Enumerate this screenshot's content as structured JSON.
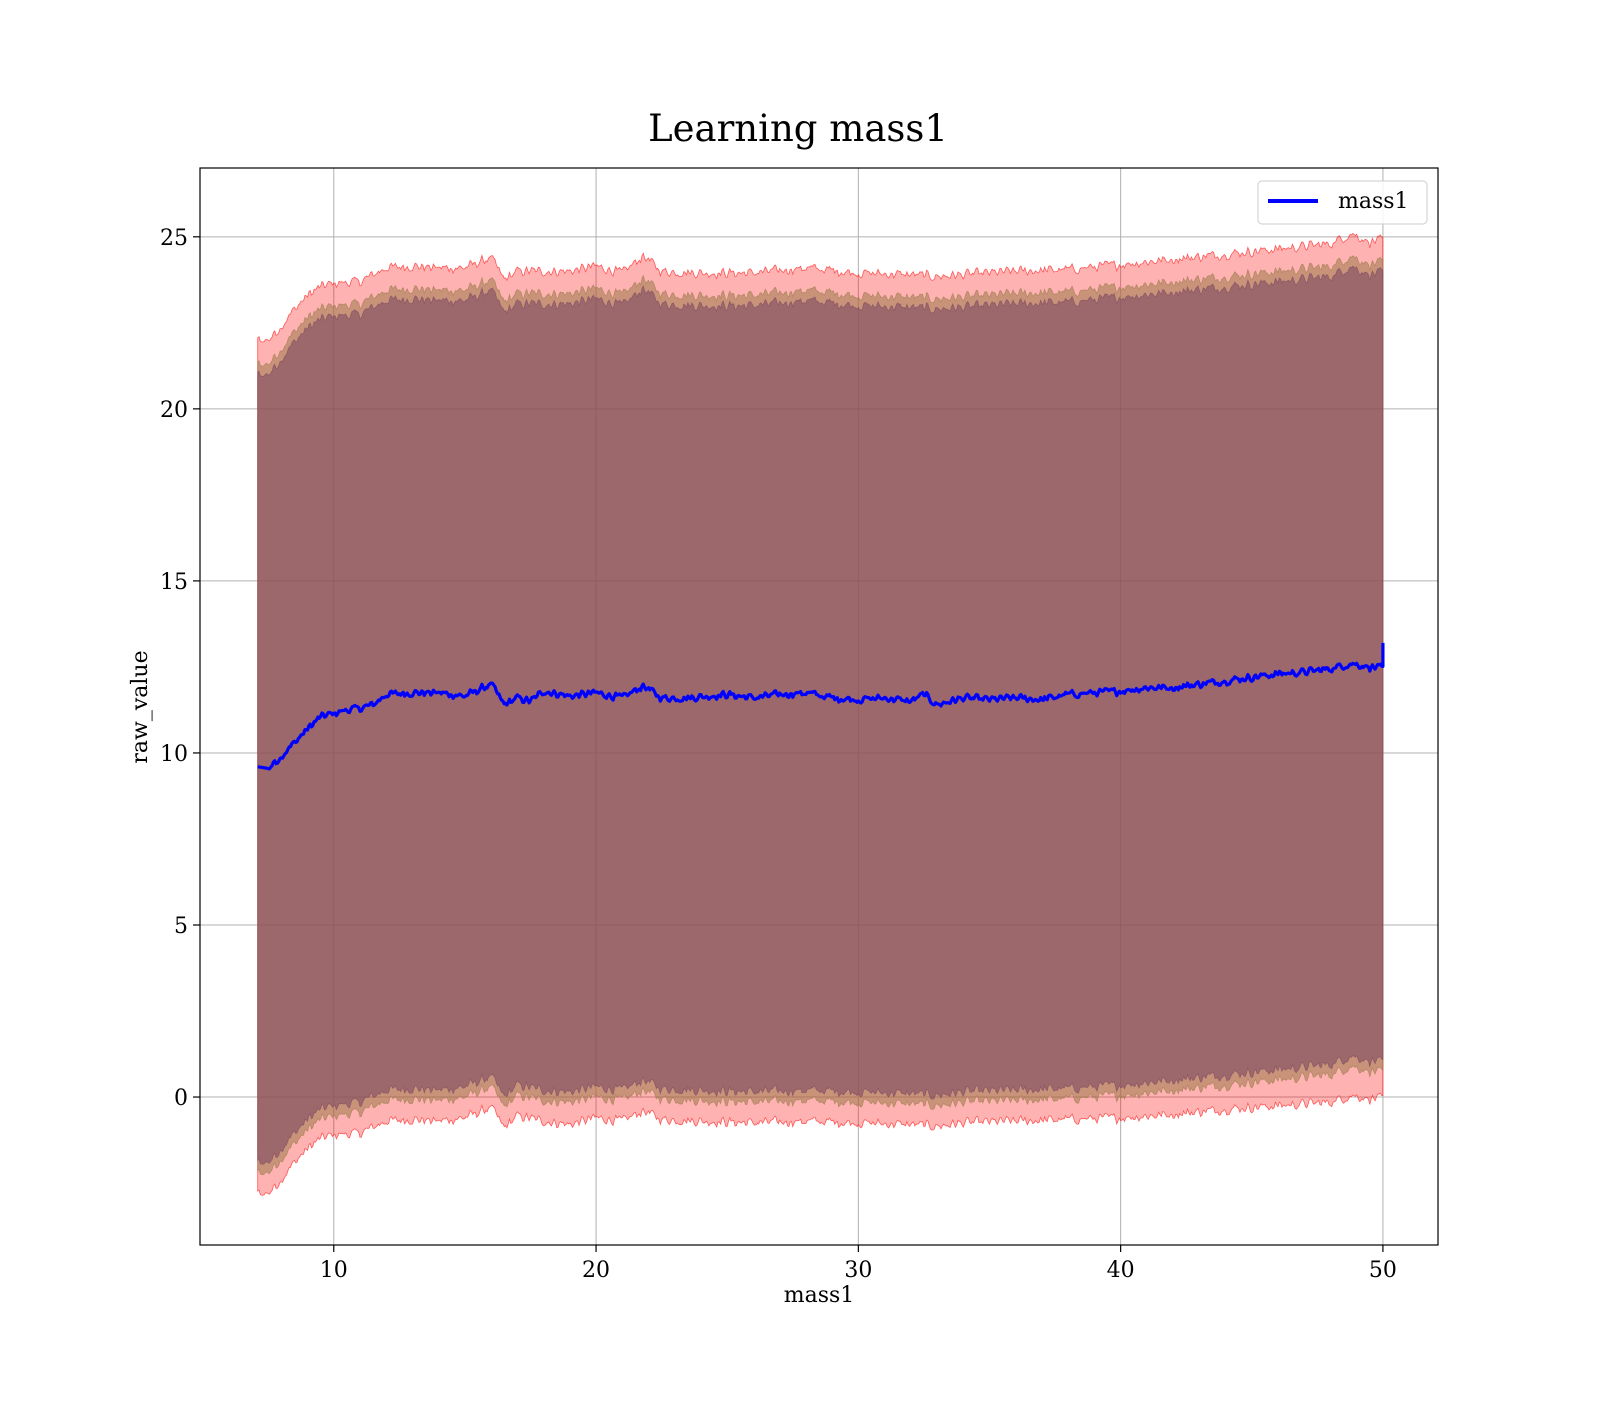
{
  "chart_data": {
    "type": "area",
    "title": "Learning mass1",
    "xlabel": "mass1",
    "ylabel": "raw_value",
    "xlim": [
      4.9,
      52.1
    ],
    "ylim": [
      -4.3,
      27.0
    ],
    "xticks": [
      10,
      20,
      30,
      40,
      50
    ],
    "yticks": [
      0,
      5,
      10,
      15,
      20,
      25
    ],
    "grid": true,
    "legend": {
      "position": "top-right",
      "entries": [
        "mass1"
      ]
    },
    "series": [
      {
        "name": "mass1",
        "style": "line",
        "color": "#0000ff",
        "x": [
          7.1,
          7.5,
          8.0,
          8.5,
          9.0,
          9.5,
          10.0,
          10.5,
          11.0,
          11.5,
          12.0,
          13.0,
          14.0,
          15.0,
          16.0,
          16.5,
          17.0,
          17.5,
          18.0,
          19.0,
          20.0,
          21.0,
          21.8,
          22.5,
          23.5,
          25.0,
          26.0,
          27.0,
          28.0,
          29.0,
          30.0,
          31.0,
          32.0,
          32.5,
          33.0,
          34.0,
          35.0,
          36.0,
          37.0,
          38.0,
          39.0,
          40.0,
          41.0,
          42.0,
          43.0,
          44.0,
          45.0,
          46.0,
          47.0,
          48.0,
          48.8,
          49.5,
          50.0,
          50.0
        ],
        "y": [
          9.6,
          9.55,
          9.9,
          10.3,
          10.7,
          11.05,
          11.15,
          11.25,
          11.3,
          11.4,
          11.7,
          11.75,
          11.75,
          11.65,
          12.0,
          11.4,
          11.6,
          11.5,
          11.8,
          11.65,
          11.75,
          11.6,
          11.95,
          11.6,
          11.6,
          11.7,
          11.6,
          11.7,
          11.75,
          11.6,
          11.55,
          11.6,
          11.5,
          11.7,
          11.4,
          11.6,
          11.55,
          11.6,
          11.55,
          11.7,
          11.75,
          11.8,
          11.9,
          11.9,
          12.0,
          12.1,
          12.2,
          12.3,
          12.35,
          12.45,
          12.6,
          12.5,
          12.45,
          13.2
        ]
      },
      {
        "name": "",
        "style": "band",
        "color": "#ff0000",
        "x": [
          7.1,
          7.5,
          8.0,
          8.5,
          9.0,
          9.5,
          10.0,
          11.0,
          12.0,
          13.0,
          14.0,
          15.0,
          16.0,
          16.5,
          17.0,
          18.0,
          19.0,
          20.0,
          21.0,
          21.8,
          22.5,
          24.0,
          26.0,
          28.0,
          30.0,
          32.0,
          33.0,
          34.0,
          36.0,
          38.0,
          40.0,
          42.0,
          44.0,
          46.0,
          48.0,
          48.8,
          49.5,
          50.0
        ],
        "lower": [
          -2.8,
          -2.8,
          -2.4,
          -1.9,
          -1.5,
          -1.2,
          -1.1,
          -1.05,
          -0.7,
          -0.65,
          -0.7,
          -0.6,
          -0.3,
          -0.9,
          -0.55,
          -0.7,
          -0.8,
          -0.6,
          -0.7,
          -0.4,
          -0.65,
          -0.7,
          -0.75,
          -0.7,
          -0.75,
          -0.8,
          -0.85,
          -0.75,
          -0.7,
          -0.65,
          -0.6,
          -0.5,
          -0.35,
          -0.25,
          -0.15,
          0.05,
          -0.05,
          -0.05
        ],
        "upper": [
          22.0,
          22.0,
          22.4,
          22.9,
          23.3,
          23.55,
          23.65,
          23.7,
          24.1,
          24.15,
          24.1,
          24.1,
          24.4,
          23.75,
          24.0,
          24.0,
          24.0,
          24.15,
          23.95,
          24.45,
          24.0,
          23.95,
          23.95,
          24.1,
          23.95,
          23.9,
          23.85,
          23.9,
          24.0,
          24.05,
          24.2,
          24.35,
          24.5,
          24.65,
          24.8,
          25.1,
          24.85,
          24.9
        ]
      },
      {
        "name": "",
        "style": "band",
        "color": "#9a7a4a",
        "x": [
          7.1,
          7.5,
          8.0,
          8.5,
          9.0,
          9.5,
          10.0,
          11.0,
          12.0,
          13.0,
          14.0,
          15.0,
          16.0,
          16.5,
          17.0,
          18.0,
          19.0,
          20.0,
          21.0,
          21.8,
          22.5,
          24.0,
          26.0,
          28.0,
          30.0,
          32.0,
          33.0,
          34.0,
          36.0,
          38.0,
          40.0,
          42.0,
          44.0,
          46.0,
          48.0,
          48.8,
          49.5,
          50.0
        ],
        "lower": [
          -2.2,
          -2.2,
          -1.8,
          -1.35,
          -0.95,
          -0.65,
          -0.55,
          -0.45,
          -0.1,
          -0.05,
          -0.1,
          0.0,
          0.3,
          -0.3,
          0.05,
          -0.1,
          -0.15,
          0.0,
          -0.1,
          0.2,
          -0.05,
          -0.1,
          -0.15,
          -0.1,
          -0.15,
          -0.2,
          -0.25,
          -0.15,
          -0.1,
          -0.05,
          0.05,
          0.2,
          0.35,
          0.5,
          0.65,
          0.9,
          0.75,
          0.7
        ],
        "upper": [
          21.3,
          21.3,
          21.75,
          22.25,
          22.65,
          22.9,
          23.0,
          23.05,
          23.45,
          23.5,
          23.45,
          23.45,
          23.75,
          23.1,
          23.35,
          23.35,
          23.35,
          23.5,
          23.3,
          23.8,
          23.35,
          23.3,
          23.3,
          23.45,
          23.3,
          23.25,
          23.2,
          23.25,
          23.35,
          23.4,
          23.55,
          23.7,
          23.85,
          24.0,
          24.15,
          24.45,
          24.2,
          24.25
        ]
      },
      {
        "name": "",
        "style": "band",
        "color": "#7a4560",
        "x": [
          7.1,
          7.5,
          8.0,
          8.5,
          9.0,
          9.5,
          10.0,
          11.0,
          12.0,
          13.0,
          14.0,
          15.0,
          16.0,
          16.5,
          17.0,
          18.0,
          19.0,
          20.0,
          21.0,
          21.8,
          22.5,
          24.0,
          26.0,
          28.0,
          30.0,
          32.0,
          33.0,
          34.0,
          36.0,
          38.0,
          40.0,
          42.0,
          44.0,
          46.0,
          48.0,
          48.8,
          49.5,
          50.0
        ],
        "lower": [
          -1.9,
          -1.9,
          -1.5,
          -1.05,
          -0.65,
          -0.35,
          -0.25,
          -0.15,
          0.2,
          0.25,
          0.2,
          0.3,
          0.6,
          0.0,
          0.35,
          0.2,
          0.15,
          0.3,
          0.2,
          0.5,
          0.25,
          0.2,
          0.15,
          0.2,
          0.15,
          0.1,
          0.05,
          0.15,
          0.2,
          0.25,
          0.35,
          0.5,
          0.65,
          0.8,
          0.95,
          1.2,
          1.05,
          1.0
        ],
        "upper": [
          21.0,
          21.0,
          21.45,
          21.95,
          22.35,
          22.6,
          22.7,
          22.75,
          23.15,
          23.2,
          23.15,
          23.15,
          23.45,
          22.8,
          23.05,
          23.05,
          23.05,
          23.2,
          23.0,
          23.5,
          23.05,
          23.0,
          23.0,
          23.15,
          23.0,
          22.95,
          22.9,
          22.95,
          23.05,
          23.1,
          23.25,
          23.4,
          23.55,
          23.7,
          23.85,
          24.15,
          23.9,
          23.95
        ]
      }
    ]
  }
}
